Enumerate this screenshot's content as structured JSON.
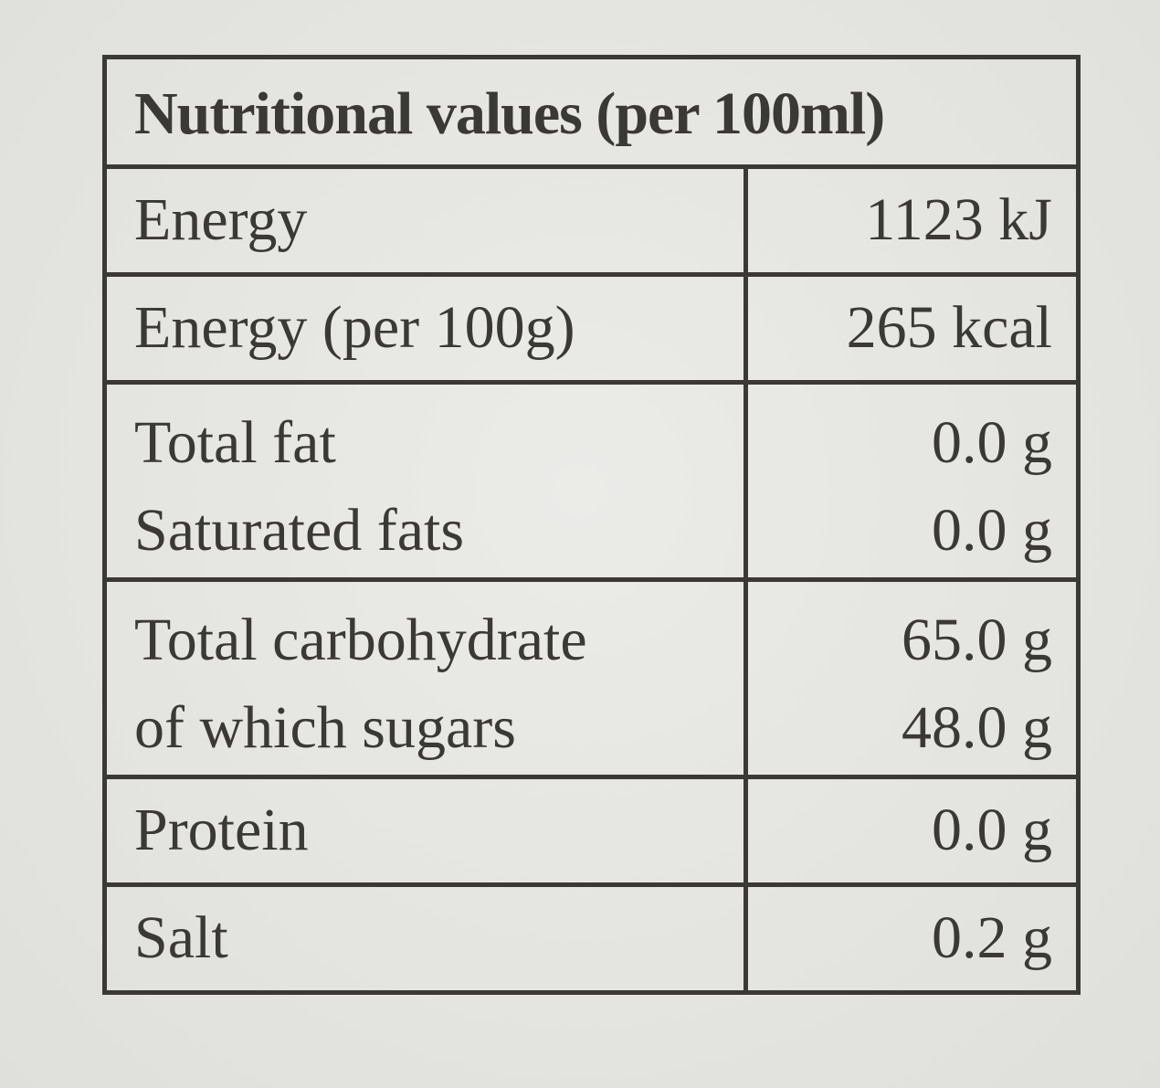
{
  "table": {
    "title": "Nutritional values (per 100ml)",
    "groups": [
      {
        "rows": [
          [
            "Energy",
            "1123 kJ"
          ]
        ]
      },
      {
        "rows": [
          [
            "Energy (per 100g)",
            "265 kcal"
          ]
        ]
      },
      {
        "rows": [
          [
            "Total fat",
            "0.0 g"
          ],
          [
            "Saturated fats",
            "0.0 g"
          ]
        ]
      },
      {
        "rows": [
          [
            "Total carbohydrate",
            "65.0 g"
          ],
          [
            "of which sugars",
            "48.0 g"
          ]
        ]
      },
      {
        "rows": [
          [
            "Protein",
            "0.0 g"
          ]
        ]
      },
      {
        "rows": [
          [
            "Salt",
            "0.2 g"
          ]
        ]
      }
    ]
  }
}
